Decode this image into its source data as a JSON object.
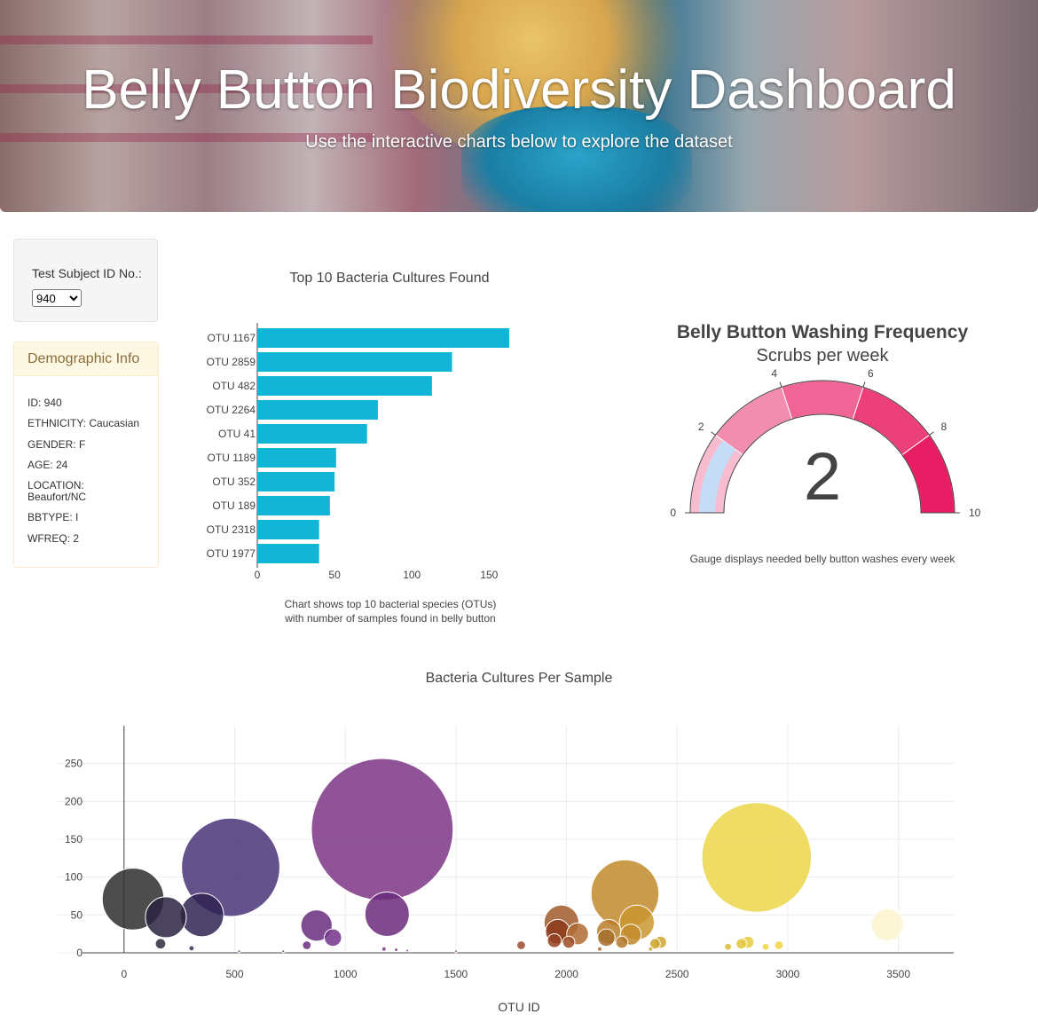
{
  "header": {
    "title": "Belly Button Biodiversity Dashboard",
    "subtitle": "Use the interactive charts below to explore the dataset"
  },
  "selector": {
    "label": "Test Subject ID No.:",
    "selected": "940"
  },
  "demographics": {
    "title": "Demographic Info",
    "rows": [
      "ID: 940",
      "ETHNICITY: Caucasian",
      "GENDER: F",
      "AGE: 24",
      "LOCATION:",
      "Beaufort/NC",
      "BBTYPE: I",
      "WFREQ: 2"
    ]
  },
  "colors": {
    "bar": "#12b5d6",
    "gauge_bands": [
      "#f7bcd0",
      "#f28db0",
      "#ef6696",
      "#ec407a",
      "#e81d63"
    ],
    "gauge_value": "#c5dcf7"
  },
  "chart_data": [
    {
      "type": "bar",
      "orientation": "horizontal",
      "title": "Top 10 Bacteria Cultures Found",
      "categories": [
        "OTU 1167",
        "OTU 2859",
        "OTU 482",
        "OTU 2264",
        "OTU 41",
        "OTU 1189",
        "OTU 352",
        "OTU 189",
        "OTU 2318",
        "OTU 1977"
      ],
      "values": [
        163,
        126,
        113,
        78,
        71,
        51,
        50,
        47,
        40,
        40
      ],
      "x_ticks": [
        0,
        50,
        100,
        150
      ],
      "xlim": [
        0,
        163
      ],
      "caption": [
        "Chart shows top 10 bacterial species (OTUs)",
        "with number of samples found in belly button"
      ]
    },
    {
      "type": "gauge",
      "title": "Belly Button Washing Frequency",
      "subtitle": "Scrubs per week",
      "value": 2,
      "value_label": "2",
      "range": [
        0,
        10
      ],
      "ticks": [
        0,
        2,
        4,
        6,
        8,
        10
      ],
      "bands": [
        [
          0,
          2
        ],
        [
          2,
          4
        ],
        [
          4,
          6
        ],
        [
          6,
          8
        ],
        [
          8,
          10
        ]
      ],
      "caption": "Gauge displays needed belly button washes every week"
    },
    {
      "type": "scatter",
      "subtype": "bubble",
      "title": "Bacteria Cultures Per Sample",
      "xlabel": "OTU ID",
      "x_ticks": [
        0,
        500,
        1000,
        1500,
        2000,
        2500,
        3000,
        3500
      ],
      "y_ticks": [
        0,
        50,
        100,
        150,
        200,
        250
      ],
      "xlim": [
        -300,
        3750
      ],
      "ylim": [
        0,
        300
      ],
      "grid": true,
      "points": [
        {
          "x": 41,
          "y": 71,
          "c": "#2e2e2e"
        },
        {
          "x": 189,
          "y": 47,
          "c": "#2a2440"
        },
        {
          "x": 352,
          "y": 50,
          "c": "#2f2352"
        },
        {
          "x": 482,
          "y": 113,
          "c": "#483478"
        },
        {
          "x": 1167,
          "y": 163,
          "c": "#7d3586"
        },
        {
          "x": 1189,
          "y": 51,
          "c": "#6b2a7b"
        },
        {
          "x": 870,
          "y": 36,
          "c": "#6a2d7e"
        },
        {
          "x": 944,
          "y": 20,
          "c": "#73338a"
        },
        {
          "x": 165,
          "y": 12,
          "c": "#2e2a3e"
        },
        {
          "x": 826,
          "y": 10,
          "c": "#6a2d7e"
        },
        {
          "x": 1977,
          "y": 40,
          "c": "#a05a2c"
        },
        {
          "x": 1960,
          "y": 28,
          "c": "#8b3a1c"
        },
        {
          "x": 2050,
          "y": 25,
          "c": "#b06b32"
        },
        {
          "x": 2264,
          "y": 78,
          "c": "#c08a2a"
        },
        {
          "x": 2318,
          "y": 40,
          "c": "#c99730"
        },
        {
          "x": 2191,
          "y": 28,
          "c": "#b87f2a"
        },
        {
          "x": 2180,
          "y": 20,
          "c": "#a56e2a"
        },
        {
          "x": 2290,
          "y": 24,
          "c": "#c28a2c"
        },
        {
          "x": 2250,
          "y": 14,
          "c": "#b07728"
        },
        {
          "x": 2859,
          "y": 126,
          "c": "#ecd64a"
        },
        {
          "x": 3450,
          "y": 37,
          "c": "#fcf3cf"
        },
        {
          "x": 1795,
          "y": 10,
          "c": "#9a4a30"
        },
        {
          "x": 2010,
          "y": 14,
          "c": "#9c4e24"
        },
        {
          "x": 1945,
          "y": 16,
          "c": "#94401e"
        },
        {
          "x": 2400,
          "y": 12,
          "c": "#c9a52e"
        },
        {
          "x": 2425,
          "y": 14,
          "c": "#cfa631"
        },
        {
          "x": 2790,
          "y": 12,
          "c": "#e2c43b"
        },
        {
          "x": 2820,
          "y": 14,
          "c": "#e8cc3f"
        },
        {
          "x": 2960,
          "y": 10,
          "c": "#eed443"
        },
        {
          "x": 2730,
          "y": 8,
          "c": "#dcbc38"
        },
        {
          "x": 2900,
          "y": 8,
          "c": "#eed443"
        },
        {
          "x": 305,
          "y": 6,
          "c": "#3a2c55"
        },
        {
          "x": 1175,
          "y": 5,
          "c": "#7d3586"
        },
        {
          "x": 1230,
          "y": 4,
          "c": "#7d3586"
        },
        {
          "x": 1280,
          "y": 3,
          "c": "#7d3586"
        },
        {
          "x": 2150,
          "y": 5,
          "c": "#a66a28"
        },
        {
          "x": 2380,
          "y": 5,
          "c": "#c9a52e"
        },
        {
          "x": 520,
          "y": 2,
          "c": "#483478"
        },
        {
          "x": 720,
          "y": 2,
          "c": "#5d2d74"
        },
        {
          "x": 1500,
          "y": 2,
          "c": "#8b3a86"
        }
      ]
    }
  ]
}
